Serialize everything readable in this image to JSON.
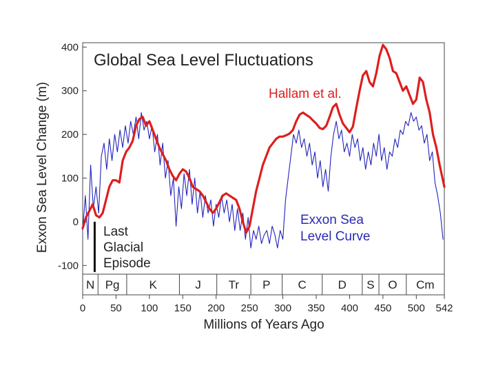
{
  "chart_data": {
    "type": "line",
    "title": "Global Sea Level Fluctuations",
    "xlabel": "Millions of Years Ago",
    "ylabel": "Exxon Sea Level Change (m)",
    "xlim": [
      0,
      542
    ],
    "ylim": [
      -120,
      410
    ],
    "x_ticks": [
      0,
      50,
      100,
      150,
      200,
      250,
      300,
      350,
      400,
      450,
      500,
      542
    ],
    "y_ticks": [
      -100,
      0,
      100,
      200,
      300,
      400
    ],
    "periods": [
      {
        "label": "N",
        "start": 0,
        "end": 23
      },
      {
        "label": "Pg",
        "start": 23,
        "end": 66
      },
      {
        "label": "K",
        "start": 66,
        "end": 145
      },
      {
        "label": "J",
        "start": 145,
        "end": 201
      },
      {
        "label": "Tr",
        "start": 201,
        "end": 252
      },
      {
        "label": "P",
        "start": 252,
        "end": 299
      },
      {
        "label": "C",
        "start": 299,
        "end": 359
      },
      {
        "label": "D",
        "start": 359,
        "end": 419
      },
      {
        "label": "S",
        "start": 419,
        "end": 444
      },
      {
        "label": "O",
        "start": 444,
        "end": 485
      },
      {
        "label": "Cm",
        "start": 485,
        "end": 542
      }
    ],
    "annotations": {
      "glacial": {
        "lines": [
          "Last",
          "Glacial",
          "Episode"
        ],
        "x": 18,
        "y_top": 0,
        "y_bottom": -115
      }
    },
    "series": [
      {
        "name": "Hallam et al.",
        "color": "#dd1e1e",
        "x": [
          0,
          5,
          10,
          15,
          20,
          25,
          30,
          35,
          40,
          45,
          50,
          55,
          60,
          65,
          70,
          75,
          80,
          85,
          90,
          95,
          100,
          105,
          110,
          115,
          120,
          125,
          130,
          135,
          140,
          145,
          150,
          155,
          160,
          165,
          170,
          175,
          180,
          185,
          190,
          195,
          200,
          205,
          210,
          215,
          220,
          225,
          230,
          235,
          240,
          245,
          250,
          255,
          260,
          265,
          270,
          275,
          280,
          285,
          290,
          295,
          300,
          305,
          310,
          315,
          320,
          325,
          330,
          335,
          340,
          345,
          350,
          355,
          360,
          365,
          370,
          375,
          380,
          385,
          390,
          395,
          400,
          405,
          410,
          415,
          420,
          425,
          430,
          435,
          440,
          445,
          450,
          455,
          460,
          465,
          470,
          475,
          480,
          485,
          490,
          495,
          500,
          505,
          510,
          515,
          520,
          525,
          530,
          535,
          542
        ],
        "values": [
          -15,
          10,
          25,
          40,
          15,
          10,
          20,
          50,
          80,
          95,
          95,
          90,
          140,
          160,
          170,
          185,
          220,
          235,
          240,
          220,
          230,
          210,
          190,
          170,
          155,
          140,
          120,
          105,
          95,
          110,
          120,
          115,
          100,
          80,
          75,
          70,
          60,
          45,
          30,
          20,
          30,
          45,
          60,
          65,
          60,
          55,
          50,
          30,
          0,
          -25,
          -10,
          30,
          70,
          100,
          130,
          150,
          170,
          180,
          190,
          195,
          195,
          198,
          202,
          210,
          230,
          245,
          250,
          245,
          240,
          232,
          225,
          215,
          212,
          220,
          240,
          262,
          270,
          245,
          225,
          215,
          205,
          218,
          260,
          300,
          335,
          345,
          320,
          310,
          340,
          380,
          405,
          395,
          375,
          345,
          340,
          320,
          300,
          310,
          290,
          270,
          280,
          330,
          320,
          280,
          250,
          200,
          170,
          130,
          80
        ]
      },
      {
        "name": "Exxon Sea Level Curve",
        "color": "#2222bb",
        "x": [
          0,
          4,
          8,
          12,
          16,
          20,
          24,
          28,
          32,
          36,
          40,
          44,
          48,
          52,
          56,
          60,
          64,
          68,
          72,
          76,
          80,
          84,
          88,
          92,
          96,
          100,
          104,
          108,
          112,
          116,
          120,
          124,
          128,
          132,
          136,
          140,
          144,
          148,
          152,
          156,
          160,
          164,
          168,
          172,
          176,
          180,
          184,
          188,
          192,
          196,
          200,
          204,
          208,
          212,
          216,
          220,
          224,
          228,
          232,
          236,
          240,
          244,
          248,
          252,
          256,
          260,
          264,
          268,
          272,
          276,
          280,
          284,
          288,
          292,
          296,
          300,
          304,
          308,
          312,
          316,
          320,
          324,
          328,
          332,
          336,
          340,
          344,
          348,
          352,
          356,
          360,
          364,
          368,
          372,
          376,
          380,
          384,
          388,
          392,
          396,
          400,
          404,
          408,
          412,
          416,
          420,
          424,
          428,
          432,
          436,
          440,
          444,
          448,
          452,
          456,
          460,
          464,
          468,
          472,
          476,
          480,
          484,
          488,
          492,
          496,
          500,
          504,
          508,
          512,
          516,
          520,
          524,
          528,
          532,
          536,
          540
        ],
        "values": [
          -20,
          60,
          -40,
          130,
          30,
          80,
          20,
          150,
          180,
          120,
          190,
          140,
          200,
          160,
          210,
          170,
          220,
          180,
          230,
          200,
          240,
          190,
          250,
          210,
          230,
          190,
          220,
          160,
          200,
          130,
          180,
          100,
          140,
          60,
          100,
          -10,
          80,
          30,
          110,
          60,
          120,
          40,
          100,
          20,
          70,
          10,
          60,
          20,
          50,
          -10,
          40,
          10,
          60,
          20,
          50,
          0,
          40,
          -20,
          30,
          -20,
          20,
          -40,
          10,
          -60,
          -20,
          -40,
          -10,
          -50,
          -30,
          -20,
          -50,
          -10,
          -30,
          -60,
          -20,
          -40,
          50,
          100,
          150,
          200,
          180,
          210,
          170,
          190,
          150,
          180,
          130,
          160,
          100,
          140,
          80,
          120,
          70,
          150,
          200,
          230,
          190,
          210,
          160,
          180,
          150,
          200,
          170,
          190,
          140,
          170,
          120,
          160,
          130,
          180,
          150,
          200,
          140,
          170,
          120,
          160,
          150,
          190,
          170,
          210,
          200,
          230,
          220,
          250,
          230,
          240,
          210,
          220,
          180,
          200,
          140,
          160,
          90,
          60,
          20,
          -40
        ]
      }
    ]
  },
  "legend_labels": {
    "hallam": "Hallam et al.",
    "exxon_line1": "Exxon Sea",
    "exxon_line2": "Level Curve"
  }
}
